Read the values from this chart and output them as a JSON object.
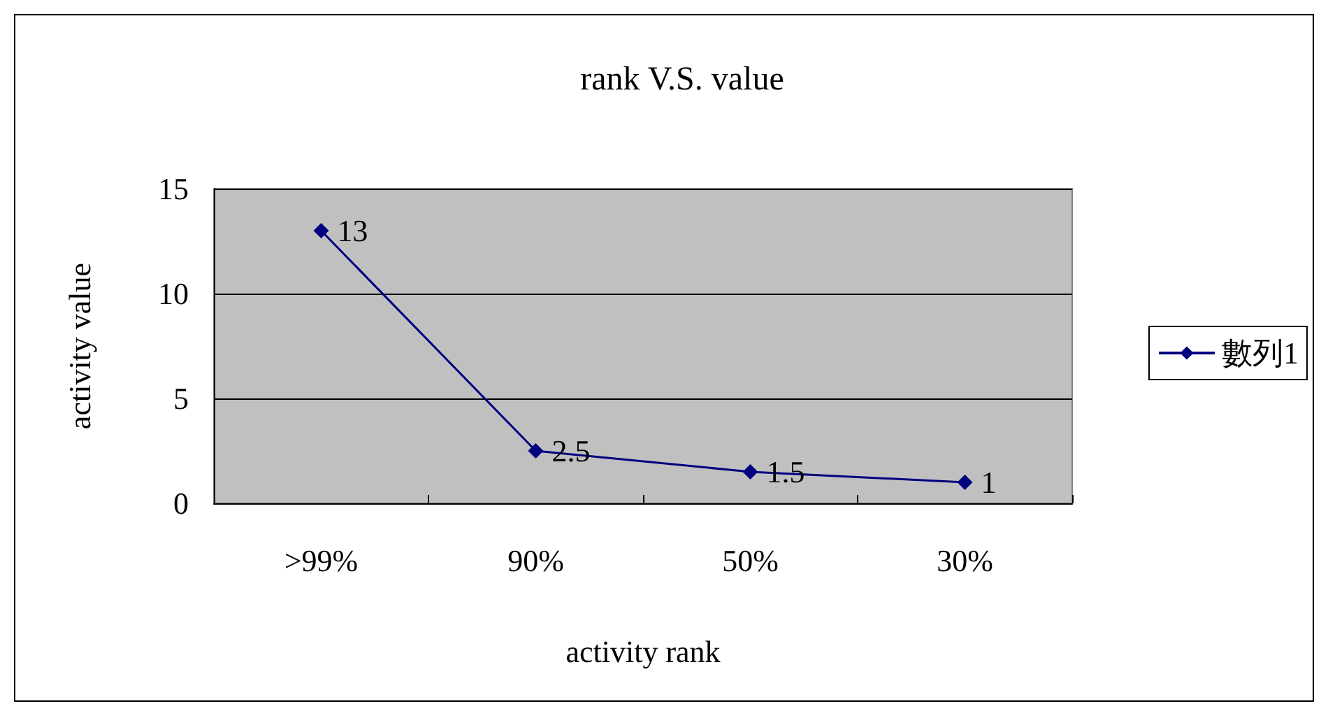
{
  "chart_data": {
    "type": "line",
    "title": "rank V.S. value",
    "xlabel": "activity rank",
    "ylabel": "activity value",
    "categories": [
      ">99%",
      "90%",
      "50%",
      "30%"
    ],
    "series": [
      {
        "name": "數列1",
        "color": "#000080",
        "values": [
          13,
          2.5,
          1.5,
          1
        ]
      }
    ],
    "ylim": [
      0,
      15
    ],
    "yticks": [
      0,
      5,
      10,
      15
    ],
    "grid": "y",
    "legend": "right",
    "marker": "diamond",
    "line_style": "solid",
    "data_labels": true
  }
}
